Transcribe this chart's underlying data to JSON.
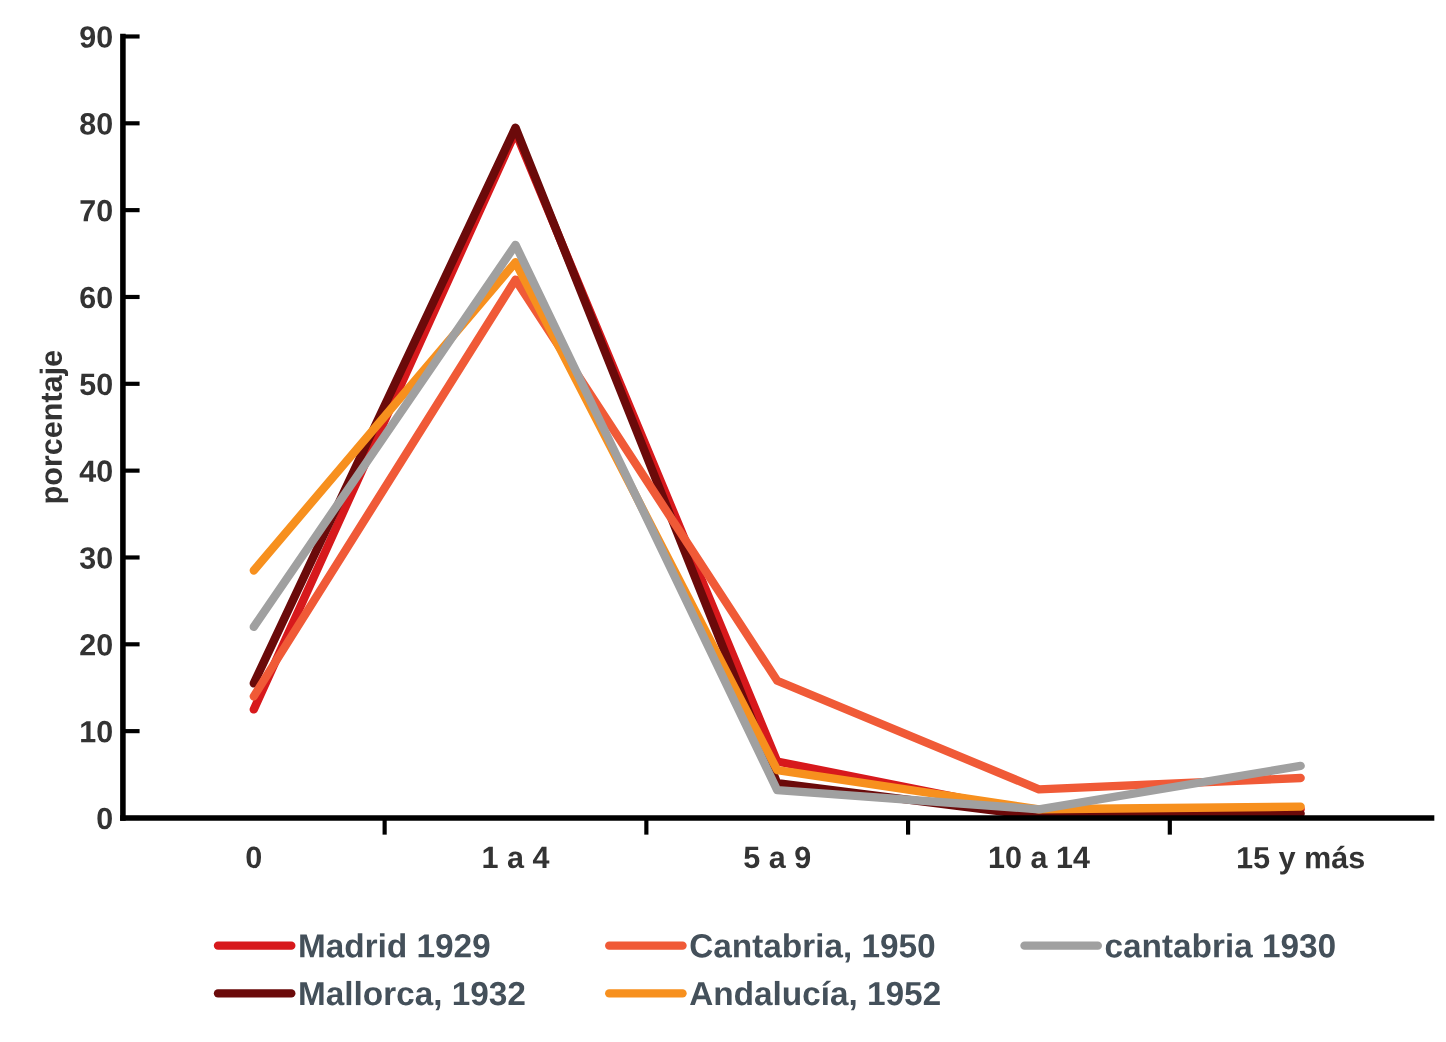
{
  "chart_data": {
    "type": "line",
    "ylabel": "porcentaje",
    "categories": [
      "0",
      "1 a 4",
      "5 a 9",
      "10 a 14",
      "15 y más"
    ],
    "ylim": [
      0,
      90
    ],
    "yticks": [
      0,
      10,
      20,
      30,
      40,
      50,
      60,
      70,
      80,
      90
    ],
    "grid": false,
    "legend": "bottom",
    "marker": "none",
    "line_style": "solid",
    "series": [
      {
        "name": "Madrid 1929",
        "color": "#d7191c",
        "values": [
          12.5,
          79,
          6.5,
          0.5,
          1
        ]
      },
      {
        "name": "Mallorca, 1932",
        "color": "#6b0a0a",
        "values": [
          15.5,
          79.5,
          4,
          0.2,
          0.5
        ]
      },
      {
        "name": "Cantabria, 1950",
        "color": "#f05a37",
        "values": [
          14,
          62,
          15.8,
          3.3,
          4.6
        ]
      },
      {
        "name": "Andalucía, 1952",
        "color": "#f7901e",
        "values": [
          28.5,
          64,
          5.5,
          1,
          1.3
        ]
      },
      {
        "name": "cantabria 1930",
        "color": "#a0a0a0",
        "values": [
          22,
          66,
          3.2,
          1,
          6
        ]
      }
    ]
  }
}
